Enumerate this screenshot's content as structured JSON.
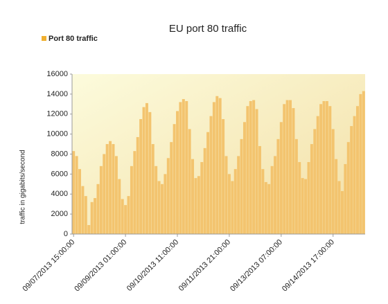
{
  "chart_data": {
    "type": "bar",
    "title": "EU port 80 traffic",
    "y_label": "traffic in gigabits/second",
    "categories": [
      "09/07/2013 15:00:00",
      null,
      null,
      null,
      null,
      null,
      null,
      null,
      null,
      null,
      null,
      null,
      null,
      null,
      null,
      null,
      null,
      "09/09/2013 01:00:00",
      null,
      null,
      null,
      null,
      null,
      null,
      null,
      null,
      null,
      null,
      null,
      null,
      null,
      null,
      null,
      null,
      "09/10/2013 11:00:00",
      null,
      null,
      null,
      null,
      null,
      null,
      null,
      null,
      null,
      null,
      null,
      null,
      null,
      null,
      null,
      null,
      "09/11/2013 21:00:00",
      null,
      null,
      null,
      null,
      null,
      null,
      null,
      null,
      null,
      null,
      null,
      null,
      null,
      null,
      null,
      null,
      "09/13/2013 07:00:00",
      null,
      null,
      null,
      null,
      null,
      null,
      null,
      null,
      null,
      null,
      null,
      null,
      null,
      null,
      null,
      null,
      "09/14/2013 17:00:00",
      null,
      null,
      null,
      null,
      null,
      null,
      null,
      null,
      null,
      null
    ],
    "series": [
      {
        "name": "Port 80 traffic",
        "color": "#f3c46f",
        "values": [
          8300,
          7800,
          6500,
          4800,
          3800,
          900,
          3200,
          3600,
          5000,
          6800,
          8000,
          9000,
          9300,
          9000,
          7800,
          5500,
          3500,
          2900,
          3800,
          6800,
          8300,
          9700,
          11500,
          12700,
          13100,
          12200,
          9000,
          6800,
          5300,
          5000,
          6000,
          7600,
          9200,
          11000,
          12300,
          13200,
          13500,
          13300,
          10500,
          7500,
          5600,
          5800,
          7200,
          8600,
          10200,
          11800,
          13200,
          13800,
          13600,
          11500,
          7800,
          6000,
          5300,
          6500,
          7800,
          9500,
          11200,
          12800,
          13300,
          13400,
          12500,
          8800,
          6500,
          5200,
          5000,
          6800,
          7800,
          9500,
          11200,
          13000,
          13400,
          13400,
          12600,
          9500,
          7200,
          5600,
          5500,
          7200,
          9000,
          10500,
          11800,
          13000,
          13300,
          13300,
          12800,
          10500,
          7500,
          5300,
          4300,
          7000,
          9200,
          10800,
          11800,
          12800,
          14000,
          14300
        ]
      }
    ],
    "ylim": [
      0,
      16000
    ],
    "yticks": [
      0,
      2000,
      4000,
      6000,
      8000,
      10000,
      12000,
      14000,
      16000
    ],
    "grid": false,
    "legend": "top-left"
  }
}
